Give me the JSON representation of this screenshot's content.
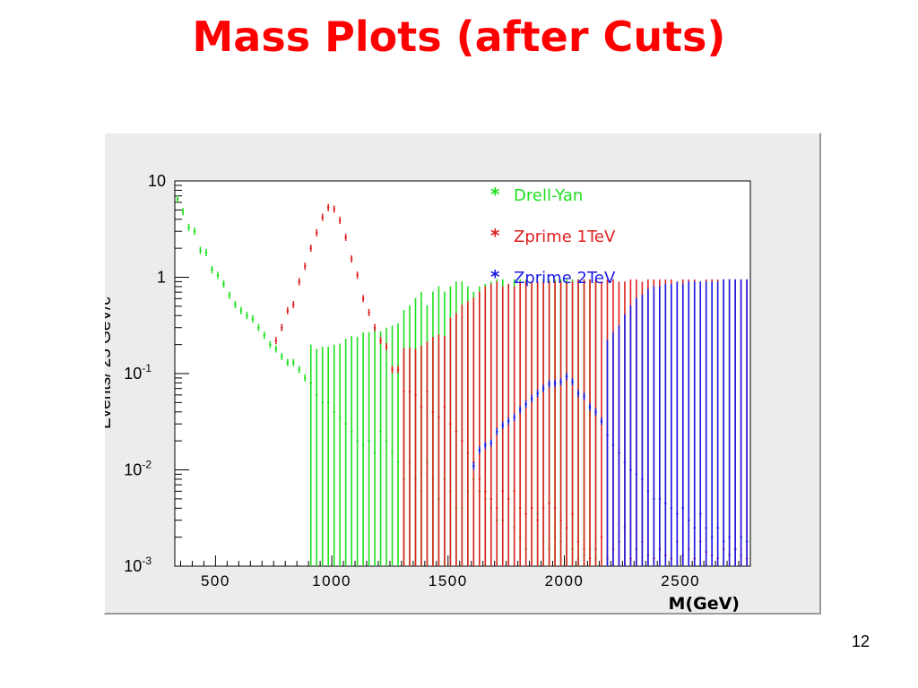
{
  "slide": {
    "title": "Mass Plots (after Cuts)",
    "page_number": "12"
  },
  "chart_data": {
    "type": "scatter",
    "title": "",
    "xlabel": "M(GeV)",
    "ylabel": "Events/ 25 GeV/c",
    "xlim": [
      325,
      2800
    ],
    "ylim": [
      0.001,
      10
    ],
    "y_scale": "log",
    "grid": false,
    "legend_position": "top-right",
    "x_ticks": [
      {
        "value": 500,
        "label": "500"
      },
      {
        "value": 1000,
        "label": "1000"
      },
      {
        "value": 1500,
        "label": "1500"
      },
      {
        "value": 2000,
        "label": "2000"
      },
      {
        "value": 2500,
        "label": "2500"
      }
    ],
    "y_ticks": [
      {
        "value": 10,
        "base": "10",
        "exp": ""
      },
      {
        "value": 1,
        "base": "1",
        "exp": ""
      },
      {
        "value": 0.1,
        "base": "10",
        "exp": "-1"
      },
      {
        "value": 0.01,
        "base": "10",
        "exp": "-2"
      },
      {
        "value": 0.001,
        "base": "10",
        "exp": "-3"
      }
    ],
    "series": [
      {
        "name": "Drell-Yan",
        "legend_label": "Drell-Yan",
        "color": "#1ee01e",
        "points": [
          [
            337,
            6.5,
            0
          ],
          [
            360,
            4.8,
            0
          ],
          [
            385,
            3.3,
            0
          ],
          [
            410,
            3.0,
            0
          ],
          [
            435,
            1.9,
            0
          ],
          [
            460,
            1.8,
            0
          ],
          [
            485,
            1.2,
            0
          ],
          [
            510,
            1.05,
            0
          ],
          [
            535,
            0.85,
            0
          ],
          [
            560,
            0.65,
            0
          ],
          [
            585,
            0.52,
            0
          ],
          [
            610,
            0.45,
            0
          ],
          [
            635,
            0.4,
            0
          ],
          [
            660,
            0.37,
            0
          ],
          [
            685,
            0.3,
            0
          ],
          [
            710,
            0.25,
            0
          ],
          [
            735,
            0.2,
            0
          ],
          [
            760,
            0.18,
            0
          ],
          [
            785,
            0.15,
            0
          ],
          [
            810,
            0.13,
            0
          ],
          [
            835,
            0.13,
            0
          ],
          [
            860,
            0.11,
            0
          ],
          [
            885,
            0.09,
            0
          ],
          [
            910,
            0.08,
            0.12
          ],
          [
            935,
            0.06,
            0.12
          ],
          [
            960,
            0.05,
            0.14
          ],
          [
            985,
            0.05,
            0.14
          ],
          [
            1010,
            0.04,
            0.16
          ],
          [
            1035,
            0.035,
            0.17
          ],
          [
            1060,
            0.03,
            0.2
          ],
          [
            1085,
            0.025,
            0.22
          ],
          [
            1110,
            0.02,
            0.22
          ],
          [
            1135,
            0.018,
            0.25
          ],
          [
            1160,
            0.02,
            0.25
          ],
          [
            1185,
            0.015,
            0.28
          ],
          [
            1210,
            0.025,
            0.25
          ],
          [
            1235,
            0.02,
            0.28
          ],
          [
            1260,
            0.015,
            0.3
          ],
          [
            1285,
            0.012,
            0.32
          ],
          [
            1310,
            0.008,
            0.45
          ],
          [
            1335,
            0.012,
            0.5
          ],
          [
            1360,
            0.008,
            0.6
          ],
          [
            1385,
            0.006,
            0.7
          ],
          [
            1410,
            0.012,
            0.5
          ],
          [
            1435,
            0.008,
            0.7
          ],
          [
            1460,
            0.005,
            0.8
          ],
          [
            1485,
            0.008,
            0.7
          ],
          [
            1510,
            0.006,
            0.8
          ],
          [
            1535,
            0.004,
            0.9
          ],
          [
            1560,
            0.004,
            0.9
          ],
          [
            1585,
            0.006,
            0.8
          ],
          [
            1610,
            0.008,
            0.7
          ],
          [
            1635,
            0.006,
            0.8
          ],
          [
            1660,
            0.005,
            0.85
          ],
          [
            1685,
            0.004,
            0.9
          ],
          [
            1710,
            0.003,
            0.95
          ],
          [
            1735,
            0.003,
            0.95
          ],
          [
            1760,
            0.005,
            0.85
          ],
          [
            1785,
            0.0025,
            0.95
          ],
          [
            1810,
            0.002,
            0.95
          ],
          [
            1835,
            0.0015,
            0.95
          ],
          [
            1860,
            0.004,
            0.9
          ],
          [
            1885,
            0.0035,
            0.9
          ],
          [
            1910,
            0.0018,
            0.95
          ],
          [
            1935,
            0.0015,
            0.95
          ],
          [
            1960,
            0.002,
            0.95
          ],
          [
            1985,
            0.0018,
            0.95
          ],
          [
            2010,
            0.0025,
            0.95
          ],
          [
            2035,
            0.0015,
            0.95
          ],
          [
            2060,
            0.0012,
            0.95
          ],
          [
            2085,
            0.0013,
            0.95
          ],
          [
            2110,
            0.0015,
            0.95
          ],
          [
            2135,
            0.0012,
            0.95
          ]
        ]
      },
      {
        "name": "Zprime 1TeV",
        "legend_label": "Zprime 1TeV",
        "color": "#e02020",
        "points": [
          [
            760,
            0.22,
            0
          ],
          [
            785,
            0.3,
            0
          ],
          [
            810,
            0.45,
            0
          ],
          [
            835,
            0.52,
            0
          ],
          [
            860,
            0.9,
            0
          ],
          [
            885,
            1.3,
            0
          ],
          [
            910,
            2.0,
            0
          ],
          [
            935,
            2.9,
            0
          ],
          [
            960,
            4.2,
            0
          ],
          [
            985,
            5.3,
            0
          ],
          [
            1010,
            5.1,
            0
          ],
          [
            1035,
            3.9,
            0
          ],
          [
            1060,
            2.6,
            0
          ],
          [
            1085,
            1.55,
            0
          ],
          [
            1110,
            1.05,
            0
          ],
          [
            1135,
            0.6,
            0
          ],
          [
            1160,
            0.43,
            0
          ],
          [
            1185,
            0.3,
            0
          ],
          [
            1210,
            0.22,
            0
          ],
          [
            1235,
            0.19,
            0
          ],
          [
            1260,
            0.11,
            0
          ],
          [
            1285,
            0.11,
            0
          ],
          [
            1310,
            0.065,
            0.12
          ],
          [
            1335,
            0.065,
            0.12
          ],
          [
            1360,
            0.06,
            0.12
          ],
          [
            1385,
            0.045,
            0.15
          ],
          [
            1410,
            0.065,
            0.15
          ],
          [
            1435,
            0.04,
            0.2
          ],
          [
            1460,
            0.035,
            0.22
          ],
          [
            1485,
            0.045,
            0.2
          ],
          [
            1510,
            0.03,
            0.35
          ],
          [
            1535,
            0.025,
            0.4
          ],
          [
            1560,
            0.02,
            0.5
          ],
          [
            1585,
            0.015,
            0.55
          ],
          [
            1610,
            0.012,
            0.6
          ],
          [
            1635,
            0.008,
            0.7
          ],
          [
            1660,
            0.006,
            0.8
          ],
          [
            1685,
            0.005,
            0.85
          ],
          [
            1710,
            0.004,
            0.9
          ],
          [
            1735,
            0.006,
            0.8
          ],
          [
            1760,
            0.005,
            0.85
          ],
          [
            1785,
            0.006,
            0.8
          ],
          [
            1810,
            0.004,
            0.9
          ],
          [
            1835,
            0.0035,
            0.9
          ],
          [
            1860,
            0.004,
            0.9
          ],
          [
            1885,
            0.003,
            0.9
          ],
          [
            1910,
            0.004,
            0.9
          ],
          [
            1935,
            0.0045,
            0.9
          ],
          [
            1960,
            0.004,
            0.9
          ],
          [
            1985,
            0.003,
            0.9
          ],
          [
            2010,
            0.0025,
            0.9
          ],
          [
            2035,
            0.0035,
            0.9
          ],
          [
            2060,
            0.0018,
            0.95
          ],
          [
            2085,
            0.0015,
            0.95
          ],
          [
            2110,
            0.0012,
            0.95
          ],
          [
            2135,
            0.0015,
            0.95
          ],
          [
            2160,
            0.002,
            0.9
          ],
          [
            2185,
            0.0012,
            0.95
          ],
          [
            2210,
            0.0015,
            0.95
          ],
          [
            2235,
            0.0018,
            0.9
          ],
          [
            2260,
            0.0025,
            0.9
          ],
          [
            2285,
            0.0012,
            0.95
          ],
          [
            2310,
            0.0015,
            0.95
          ],
          [
            2335,
            0.0018,
            0.9
          ],
          [
            2360,
            0.0013,
            0.95
          ],
          [
            2385,
            0.0012,
            0.95
          ],
          [
            2410,
            0.0015,
            0.95
          ],
          [
            2435,
            0.0013,
            0.95
          ],
          [
            2460,
            0.0012,
            0.95
          ],
          [
            2485,
            0.0018,
            0.9
          ],
          [
            2510,
            0.0013,
            0.95
          ],
          [
            2535,
            0.0015,
            0.95
          ],
          [
            2560,
            0.0012,
            0.95
          ],
          [
            2585,
            0.0018,
            0.9
          ],
          [
            2610,
            0.0014,
            0.95
          ],
          [
            2635,
            0.0013,
            0.95
          ],
          [
            2660,
            0.0012,
            0.95
          ],
          [
            2685,
            0.0015,
            0.95
          ],
          [
            2710,
            0.0013,
            0.95
          ],
          [
            2735,
            0.0015,
            0.95
          ],
          [
            2760,
            0.0013,
            0.95
          ],
          [
            2785,
            0.0012,
            0.95
          ]
        ]
      },
      {
        "name": "Zprime 2TeV",
        "legend_label": "Zprime 2TeV",
        "color": "#1a1ae6",
        "points": [
          [
            1610,
            0.011,
            0
          ],
          [
            1635,
            0.016,
            0
          ],
          [
            1660,
            0.018,
            0
          ],
          [
            1685,
            0.019,
            0
          ],
          [
            1710,
            0.025,
            0
          ],
          [
            1735,
            0.029,
            0
          ],
          [
            1760,
            0.032,
            0
          ],
          [
            1785,
            0.035,
            0
          ],
          [
            1810,
            0.042,
            0
          ],
          [
            1835,
            0.048,
            0
          ],
          [
            1860,
            0.055,
            0
          ],
          [
            1885,
            0.062,
            0
          ],
          [
            1910,
            0.07,
            0
          ],
          [
            1935,
            0.078,
            0
          ],
          [
            1960,
            0.079,
            0
          ],
          [
            1985,
            0.082,
            0
          ],
          [
            2010,
            0.093,
            0
          ],
          [
            2035,
            0.082,
            0
          ],
          [
            2060,
            0.062,
            0
          ],
          [
            2085,
            0.058,
            0
          ],
          [
            2110,
            0.045,
            0
          ],
          [
            2135,
            0.04,
            0
          ],
          [
            2160,
            0.032,
            0
          ],
          [
            2185,
            0.023,
            0.2
          ],
          [
            2210,
            0.018,
            0.25
          ],
          [
            2235,
            0.015,
            0.3
          ],
          [
            2260,
            0.012,
            0.4
          ],
          [
            2285,
            0.01,
            0.5
          ],
          [
            2310,
            0.009,
            0.6
          ],
          [
            2335,
            0.008,
            0.65
          ],
          [
            2360,
            0.006,
            0.75
          ],
          [
            2385,
            0.005,
            0.8
          ],
          [
            2410,
            0.005,
            0.8
          ],
          [
            2435,
            0.0045,
            0.85
          ],
          [
            2460,
            0.004,
            0.85
          ],
          [
            2485,
            0.0035,
            0.9
          ],
          [
            2510,
            0.004,
            0.85
          ],
          [
            2535,
            0.003,
            0.9
          ],
          [
            2560,
            0.0025,
            0.9
          ],
          [
            2585,
            0.0035,
            0.9
          ],
          [
            2610,
            0.0025,
            0.9
          ],
          [
            2635,
            0.002,
            0.9
          ],
          [
            2660,
            0.0025,
            0.9
          ],
          [
            2685,
            0.0018,
            0.95
          ],
          [
            2710,
            0.002,
            0.95
          ],
          [
            2735,
            0.0015,
            0.95
          ],
          [
            2760,
            0.002,
            0.95
          ],
          [
            2785,
            0.0018,
            0.95
          ]
        ]
      }
    ]
  }
}
